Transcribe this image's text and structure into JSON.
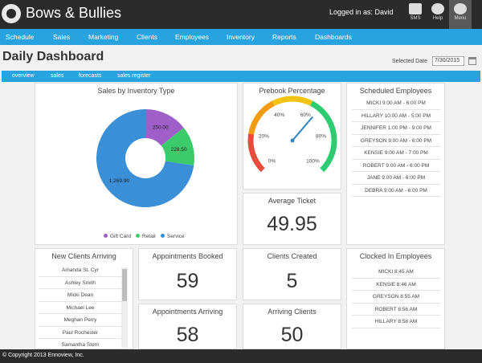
{
  "app": {
    "name": "Bows & Bullies",
    "logged_in": "Logged in as: David",
    "sms_label": "SMS",
    "help_label": "Help",
    "menu_label": "Menu"
  },
  "nav": [
    "Schedule",
    "Sales",
    "Marketing",
    "Clients",
    "Employees",
    "Inventory",
    "Reports",
    "Dashboards"
  ],
  "page": {
    "title": "Daily Dashboard",
    "selected_date_label": "Selected Date",
    "selected_date_value": "7/30/2015"
  },
  "subnav": [
    "overview",
    "sales",
    "forecasts",
    "sales register"
  ],
  "colors": {
    "accent": "#29a3df",
    "topbar": "#2b2b2b",
    "gift_card": "#a05fc8",
    "retail": "#3ccb6a",
    "service": "#3a8fd6",
    "gauge_red": "#e84c3d",
    "gauge_orange": "#f39c12",
    "gauge_yellow": "#f1c40f",
    "gauge_green": "#2ecc71",
    "needle": "#2e86c1"
  },
  "icons": {
    "logo": "gear-icon",
    "sms": "sms-icon",
    "help": "help-icon",
    "menu": "gear-icon",
    "calendar": "calendar-icon"
  },
  "sales_chart": {
    "title": "Sales by Inventory Type",
    "slices": [
      {
        "name": "Gift Card",
        "value": 250.0,
        "label": "250.00"
      },
      {
        "name": "Retail",
        "value": 228.5,
        "label": "228.50"
      },
      {
        "name": "Service",
        "value": 1269.9,
        "label": "1,269.90"
      }
    ]
  },
  "prebook": {
    "title": "Prebook Percentage",
    "value": 65,
    "ticks": [
      "0%",
      "20%",
      "40%",
      "60%",
      "80%",
      "100%"
    ]
  },
  "average_ticket": {
    "title": "Average Ticket",
    "value": "49.95"
  },
  "scheduled_employees": {
    "title": "Scheduled Employees",
    "rows": [
      "MICKI 9:00 AM - 6:00 PM",
      "HILLARY 10:00 AM - 5:00 PM",
      "JENNIFER 1:00 PM - 9:00 PM",
      "GREYSON 9:00 AM - 6:00 PM",
      "KENSIE 9:00 AM - 7:00 PM",
      "ROBERT 9:00 AM - 6:00 PM",
      "JANE 9:00 AM - 6:00 PM",
      "DEBRA 9:00 AM - 6:00 PM"
    ]
  },
  "new_clients": {
    "title": "New Clients Arriving",
    "rows": [
      "Amanda St. Cyr",
      "Ashley Smith",
      "Micki Dean",
      "Michael Lee",
      "Meghan Perry",
      "Paul Rochester",
      "Samantha Stern"
    ]
  },
  "appointments_booked": {
    "title": "Appointments Booked",
    "value": "59"
  },
  "appointments_arriving": {
    "title": "Appointments Arriving",
    "value": "58"
  },
  "clients_created": {
    "title": "Clients Created",
    "value": "5"
  },
  "arriving_clients": {
    "title": "Arriving Clients",
    "value": "50"
  },
  "clocked_in": {
    "title": "Clocked In Employees",
    "rows": [
      "MICKI 8:45 AM",
      "KENSIE 8:46 AM",
      "GREYSON 8:55 AM",
      "ROBERT 8:56 AM",
      "HILLARY 8:58 AM"
    ]
  },
  "footer": {
    "copyright": "© Copyright 2013 Ennoview, Inc."
  }
}
